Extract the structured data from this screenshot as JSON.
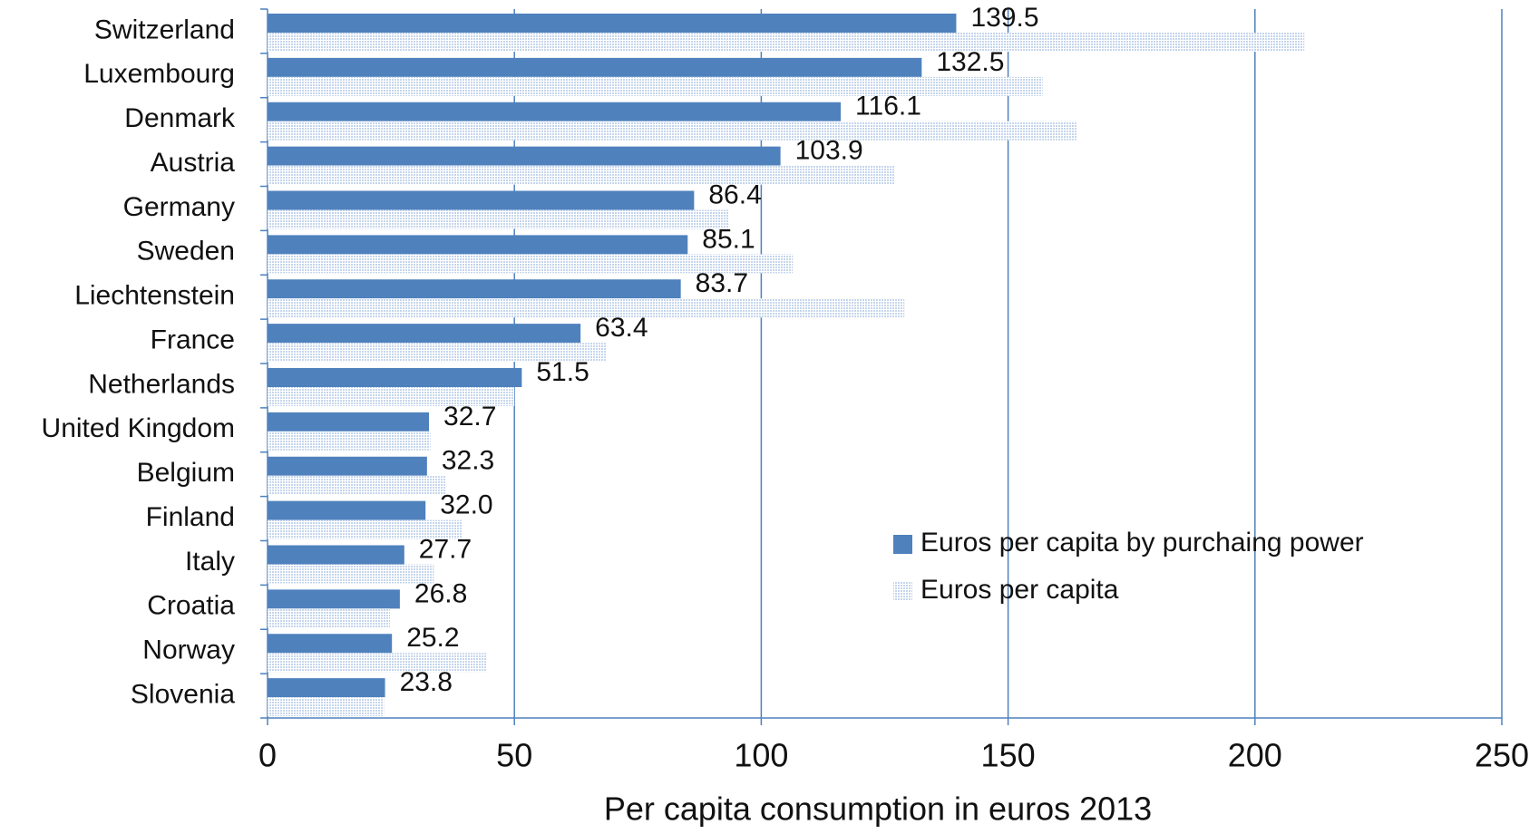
{
  "chart_data": {
    "type": "barh",
    "x_label": "Per capita consumption in euros 2013",
    "categories": [
      "Switzerland",
      "Luxembourg",
      "Denmark",
      "Austria",
      "Germany",
      "Sweden",
      "Liechtenstein",
      "France",
      "Netherlands",
      "United Kingdom",
      "Belgium",
      "Finland",
      "Italy",
      "Croatia",
      "Norway",
      "Slovenia"
    ],
    "series": [
      {
        "name": "Euros per capita by purchaing power",
        "color": "#4f81bd",
        "values": [
          139.5,
          132.5,
          116.1,
          103.9,
          86.4,
          85.1,
          83.7,
          63.4,
          51.5,
          32.7,
          32.3,
          32.0,
          27.7,
          26.8,
          25.2,
          23.8
        ],
        "value_labels": [
          "139.5",
          "132.5",
          "116.1",
          "103.9",
          "86.4",
          "85.1",
          "83.7",
          "63.4",
          "51.5",
          "32.7",
          "32.3",
          "32.0",
          "27.7",
          "26.8",
          "25.2",
          "23.8"
        ]
      },
      {
        "name": "Euros per capita",
        "color": "#c6d6ec",
        "pattern": "dotted",
        "values": [
          210,
          157,
          164,
          127,
          93.5,
          106.4,
          129,
          68.7,
          50,
          33,
          36,
          39.3,
          33.7,
          24.8,
          44.3,
          23.6
        ]
      }
    ],
    "xlim": [
      0,
      250
    ],
    "xticks": [
      0,
      50,
      100,
      150,
      200,
      250
    ],
    "grid": true,
    "legend": "lower right"
  }
}
